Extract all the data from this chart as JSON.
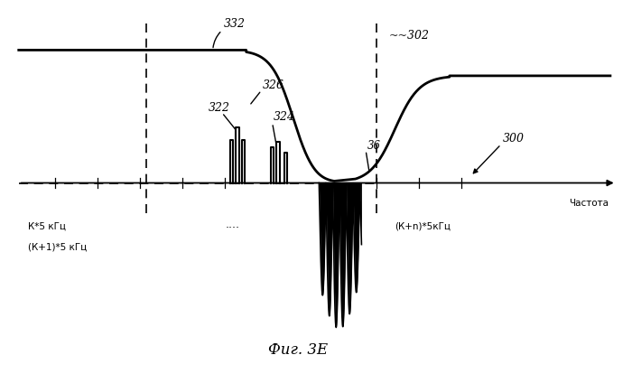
{
  "title": "Фиг. 3Е",
  "xlabel": "Частота",
  "bg_color": "#ffffff",
  "label_k5": "К*5 кГц",
  "label_k1_5": "(К+1)*5 кГц",
  "label_kn5": "(К+n)*5кГц",
  "label_dots": "....",
  "label_300": "300",
  "label_302": "~302",
  "label_322": "322",
  "label_324": "324",
  "label_326": "326",
  "label_332": "332",
  "label_36": "36",
  "xlim": [
    0,
    10
  ],
  "ylim": [
    -2.2,
    2.0
  ],
  "left_dashed_x": 2.2,
  "right_dashed_x": 6.0,
  "left_plateau_y": 1.55,
  "right_plateau_y": 1.25,
  "axis_y": 0.0,
  "tick_positions": [
    0.7,
    1.4,
    2.1,
    2.8,
    3.5,
    6.0,
    6.7,
    7.4
  ]
}
